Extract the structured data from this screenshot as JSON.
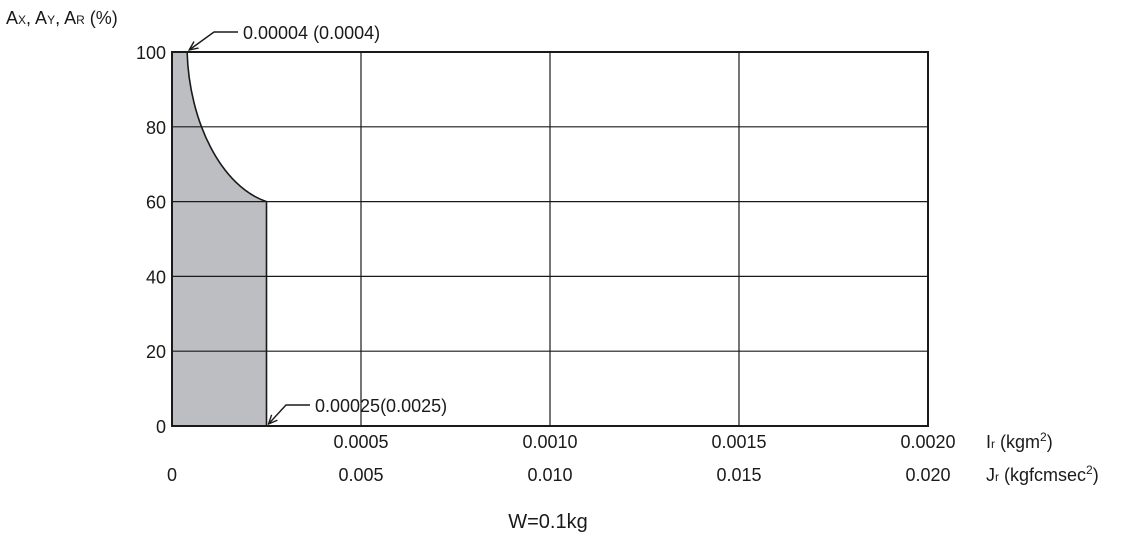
{
  "chart_data": {
    "type": "area",
    "y_axis_label": {
      "parts": [
        {
          "main": "A",
          "sub": "X",
          "suffix": ","
        },
        {
          "main": "A",
          "sub": "Y",
          "suffix": ","
        },
        {
          "main": "A",
          "sub": "R",
          "suffix": " (%)"
        }
      ]
    },
    "ylim": [
      0,
      100
    ],
    "y_ticks": [
      0,
      20,
      40,
      60,
      80,
      100
    ],
    "xlim": [
      0,
      0.002
    ],
    "x_ticks_primary": [
      "0.0005",
      "0.0010",
      "0.0015",
      "0.0020"
    ],
    "x_ticks_primary_values": [
      0.0005,
      0.001,
      0.0015,
      0.002
    ],
    "x_origin_label": "0",
    "x_ticks_secondary": [
      "0.005",
      "0.010",
      "0.015",
      "0.020"
    ],
    "x_label_primary": {
      "main": "I",
      "sub": "r",
      "unit": " (kgm",
      "sup": "2",
      "close": ")"
    },
    "x_label_secondary": {
      "main": "J",
      "sub": "r",
      "unit": " (kgfcmsec",
      "sup": "2",
      "close": ")"
    },
    "grid": true,
    "region": {
      "x": [
        0,
        4e-05,
        8e-05,
        0.00012,
        0.00016,
        0.0002,
        0.00025,
        0.00025,
        0
      ],
      "y": [
        100,
        100,
        85,
        75,
        68,
        63,
        60,
        0,
        0
      ]
    },
    "annotations": [
      {
        "text": "0.00004 (0.0004)",
        "x": 4e-05,
        "y": 100
      },
      {
        "text": "0.00025(0.0025)",
        "x": 0.00025,
        "y": 0
      }
    ],
    "caption": "W=0.1kg",
    "colors": {
      "fill": "#bcbec1",
      "line": "#1a1a1a"
    }
  }
}
